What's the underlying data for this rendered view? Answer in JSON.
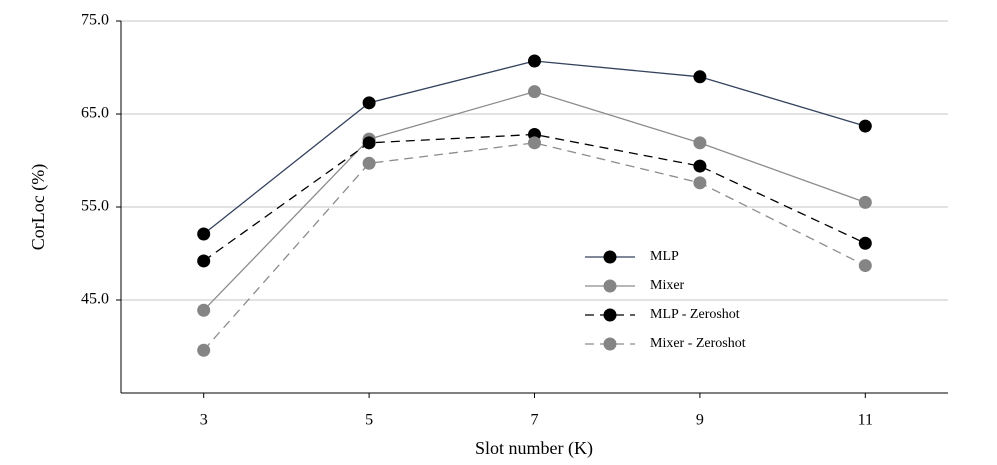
{
  "chart_data": {
    "type": "line",
    "x_label": "Slot number  (K)",
    "y_label": "CorLoc (%)",
    "x": [
      3,
      5,
      7,
      9,
      11
    ],
    "xlim": [
      2,
      12
    ],
    "xticks": [
      3,
      5,
      7,
      9,
      11
    ],
    "ylim": [
      35,
      75
    ],
    "yticks": [
      {
        "value": 45,
        "label": "45.0"
      },
      {
        "value": 55,
        "label": "55.0"
      },
      {
        "value": 65,
        "label": "65.0"
      },
      {
        "value": 75,
        "label": "75.0"
      }
    ],
    "grid": true,
    "series": [
      {
        "name": "MLP",
        "color": "#34425e",
        "marker_color": "#000000",
        "dashed": false,
        "values": [
          52.1,
          66.2,
          70.7,
          69.0,
          63.7
        ]
      },
      {
        "name": "Mixer",
        "color": "#8c8c8c",
        "marker_color": "#858585",
        "dashed": false,
        "values": [
          43.9,
          62.3,
          67.4,
          61.9,
          55.5
        ]
      },
      {
        "name": "MLP - Zeroshot",
        "color": "#000000",
        "marker_color": "#000000",
        "dashed": true,
        "values": [
          49.2,
          61.9,
          62.8,
          59.4,
          51.1
        ]
      },
      {
        "name": "Mixer - Zeroshot",
        "color": "#8c8c8c",
        "marker_color": "#858585",
        "dashed": true,
        "values": [
          39.6,
          59.7,
          61.9,
          57.6,
          48.7
        ]
      }
    ]
  }
}
